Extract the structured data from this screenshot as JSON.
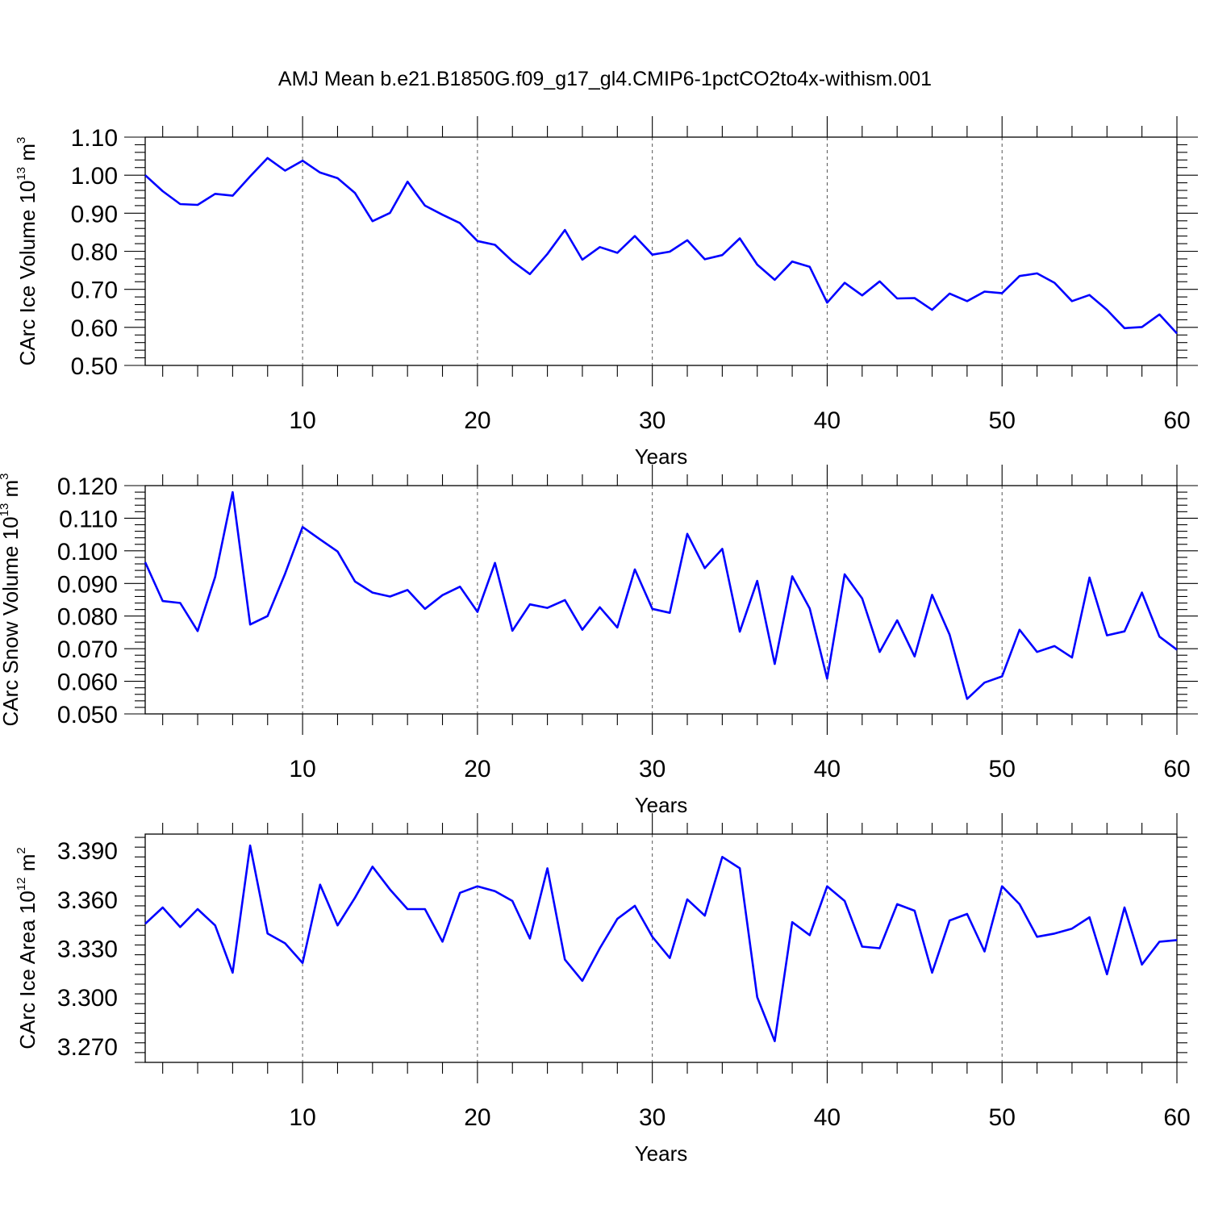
{
  "title": "AMJ Mean b.e21.B1850G.f09_g17_gl4.CMIP6-1pctCO2to4x-withism.001",
  "line_color": "#0000ff",
  "chart_data": [
    {
      "type": "line",
      "xlabel": "Years",
      "ylabel": "CArc Ice Volume 10",
      "ylabel_exp": "13",
      "ylabel_unit": " m",
      "ylabel_unit_exp": "3",
      "xlim": [
        1,
        60
      ],
      "ylim": [
        0.5,
        1.1
      ],
      "xticks": [
        10,
        20,
        30,
        40,
        50,
        60
      ],
      "xtick_labels": [
        "10",
        "20",
        "30",
        "40",
        "50",
        "60"
      ],
      "yticks": [
        0.5,
        0.6,
        0.7,
        0.8,
        0.9,
        1.0,
        1.1
      ],
      "ytick_labels": [
        "0.50",
        "0.60",
        "0.70",
        "0.80",
        "0.90",
        "1.00",
        "1.10"
      ],
      "yminor_step": 0.02,
      "grid": "vertical dashed at major x ticks",
      "x": [
        1,
        2,
        3,
        4,
        5,
        6,
        7,
        8,
        9,
        10,
        11,
        12,
        13,
        14,
        15,
        16,
        17,
        18,
        19,
        20,
        21,
        22,
        23,
        24,
        25,
        26,
        27,
        28,
        29,
        30,
        31,
        32,
        33,
        34,
        35,
        36,
        37,
        38,
        39,
        40,
        41,
        42,
        43,
        44,
        45,
        46,
        47,
        48,
        49,
        50,
        51,
        52,
        53,
        54,
        55,
        56,
        57,
        58,
        59,
        60
      ],
      "values": [
        1.0,
        0.958,
        0.924,
        0.922,
        0.951,
        0.946,
        0.997,
        1.045,
        1.012,
        1.038,
        1.007,
        0.992,
        0.953,
        0.879,
        0.901,
        0.983,
        0.92,
        0.896,
        0.874,
        0.827,
        0.817,
        0.774,
        0.74,
        0.793,
        0.856,
        0.778,
        0.811,
        0.796,
        0.84,
        0.791,
        0.799,
        0.829,
        0.779,
        0.79,
        0.834,
        0.765,
        0.725,
        0.773,
        0.759,
        0.665,
        0.717,
        0.684,
        0.721,
        0.676,
        0.677,
        0.646,
        0.689,
        0.669,
        0.694,
        0.69,
        0.735,
        0.742,
        0.717,
        0.669,
        0.685,
        0.646,
        0.598,
        0.601,
        0.634,
        0.584
      ]
    },
    {
      "type": "line",
      "xlabel": "Years",
      "ylabel": "CArc Snow Volume 10",
      "ylabel_exp": "13",
      "ylabel_unit": " m",
      "ylabel_unit_exp": "3",
      "xlim": [
        1,
        60
      ],
      "ylim": [
        0.05,
        0.12
      ],
      "xticks": [
        10,
        20,
        30,
        40,
        50,
        60
      ],
      "xtick_labels": [
        "10",
        "20",
        "30",
        "40",
        "50",
        "60"
      ],
      "yticks": [
        0.05,
        0.06,
        0.07,
        0.08,
        0.09,
        0.1,
        0.11,
        0.12
      ],
      "ytick_labels": [
        "0.050",
        "0.060",
        "0.070",
        "0.080",
        "0.090",
        "0.100",
        "0.110",
        "0.120"
      ],
      "yminor_step": 0.002,
      "grid": "vertical dashed at major x ticks",
      "x": [
        1,
        2,
        3,
        4,
        5,
        6,
        7,
        8,
        9,
        10,
        11,
        12,
        13,
        14,
        15,
        16,
        17,
        18,
        19,
        20,
        21,
        22,
        23,
        24,
        25,
        26,
        27,
        28,
        29,
        30,
        31,
        32,
        33,
        34,
        35,
        36,
        37,
        38,
        39,
        40,
        41,
        42,
        43,
        44,
        45,
        46,
        47,
        48,
        49,
        50,
        51,
        52,
        53,
        54,
        55,
        56,
        57,
        58,
        59,
        60
      ],
      "values": [
        0.0965,
        0.0846,
        0.084,
        0.0754,
        0.092,
        0.118,
        0.0774,
        0.08,
        0.093,
        0.1073,
        0.1035,
        0.0998,
        0.0906,
        0.0872,
        0.086,
        0.088,
        0.0822,
        0.0864,
        0.089,
        0.0813,
        0.0963,
        0.0755,
        0.0836,
        0.0825,
        0.0849,
        0.0758,
        0.0827,
        0.0765,
        0.0943,
        0.0822,
        0.081,
        0.1052,
        0.0947,
        0.1006,
        0.0752,
        0.0908,
        0.0653,
        0.0922,
        0.0823,
        0.0608,
        0.0928,
        0.0854,
        0.069,
        0.0787,
        0.0676,
        0.0865,
        0.0743,
        0.0546,
        0.0596,
        0.0615,
        0.0758,
        0.069,
        0.0708,
        0.0673,
        0.0918,
        0.0741,
        0.0753,
        0.0872,
        0.0737,
        0.0697
      ]
    },
    {
      "type": "line",
      "xlabel": "Years",
      "ylabel": "CArc Ice Area 10",
      "ylabel_exp": "12",
      "ylabel_unit": " m",
      "ylabel_unit_exp": "2",
      "xlim": [
        1,
        60
      ],
      "ylim": [
        3.26,
        3.4
      ],
      "xticks": [
        10,
        20,
        30,
        40,
        50,
        60
      ],
      "xtick_labels": [
        "10",
        "20",
        "30",
        "40",
        "50",
        "60"
      ],
      "yticks": [
        3.27,
        3.3,
        3.33,
        3.36,
        3.39
      ],
      "ytick_labels": [
        "3.270",
        "3.300",
        "3.330",
        "3.360",
        "3.390"
      ],
      "yminor_step": 0.006,
      "grid": "vertical dashed at major x ticks",
      "x": [
        1,
        2,
        3,
        4,
        5,
        6,
        7,
        8,
        9,
        10,
        11,
        12,
        13,
        14,
        15,
        16,
        17,
        18,
        19,
        20,
        21,
        22,
        23,
        24,
        25,
        26,
        27,
        28,
        29,
        30,
        31,
        32,
        33,
        34,
        35,
        36,
        37,
        38,
        39,
        40,
        41,
        42,
        43,
        44,
        45,
        46,
        47,
        48,
        49,
        50,
        51,
        52,
        53,
        54,
        55,
        56,
        57,
        58,
        59,
        60
      ],
      "values": [
        3.345,
        3.355,
        3.343,
        3.354,
        3.344,
        3.315,
        3.393,
        3.339,
        3.333,
        3.321,
        3.369,
        3.344,
        3.361,
        3.38,
        3.366,
        3.354,
        3.354,
        3.334,
        3.364,
        3.368,
        3.365,
        3.359,
        3.336,
        3.379,
        3.323,
        3.31,
        3.33,
        3.348,
        3.356,
        3.337,
        3.324,
        3.36,
        3.35,
        3.386,
        3.379,
        3.3,
        3.273,
        3.346,
        3.338,
        3.368,
        3.359,
        3.331,
        3.33,
        3.357,
        3.353,
        3.315,
        3.347,
        3.351,
        3.328,
        3.368,
        3.357,
        3.337,
        3.339,
        3.342,
        3.349,
        3.314,
        3.355,
        3.32,
        3.334,
        3.335
      ]
    }
  ]
}
